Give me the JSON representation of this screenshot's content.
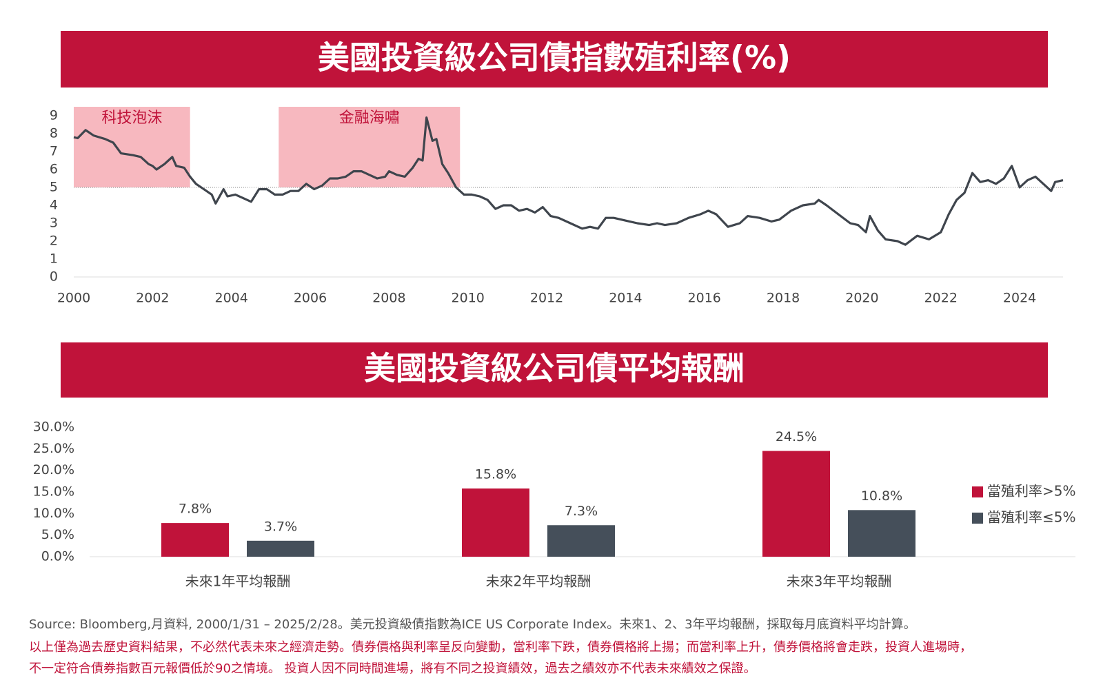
{
  "chart_data": [
    {
      "type": "line",
      "title": "美國投資級公司債指數殖利率(%)",
      "x": [
        2000.0,
        2000.1,
        2000.3,
        2000.5,
        2000.8,
        2001.0,
        2001.2,
        2001.5,
        2001.7,
        2001.9,
        2002.0,
        2002.1,
        2002.3,
        2002.5,
        2002.6,
        2002.8,
        2002.95,
        2003.1,
        2003.3,
        2003.5,
        2003.6,
        2003.8,
        2003.9,
        2004.1,
        2004.3,
        2004.5,
        2004.7,
        2004.9,
        2005.1,
        2005.3,
        2005.5,
        2005.7,
        2005.9,
        2006.1,
        2006.3,
        2006.5,
        2006.7,
        2006.9,
        2007.1,
        2007.3,
        2007.5,
        2007.7,
        2007.9,
        2008.0,
        2008.2,
        2008.4,
        2008.6,
        2008.75,
        2008.85,
        2008.95,
        2009.1,
        2009.2,
        2009.35,
        2009.5,
        2009.7,
        2009.9,
        2010.1,
        2010.3,
        2010.5,
        2010.7,
        2010.9,
        2011.1,
        2011.3,
        2011.5,
        2011.7,
        2011.9,
        2012.1,
        2012.3,
        2012.6,
        2012.9,
        2013.1,
        2013.3,
        2013.5,
        2013.7,
        2013.9,
        2014.1,
        2014.3,
        2014.6,
        2014.8,
        2015.0,
        2015.3,
        2015.6,
        2015.9,
        2016.1,
        2016.3,
        2016.6,
        2016.9,
        2017.1,
        2017.4,
        2017.7,
        2017.9,
        2018.2,
        2018.5,
        2018.8,
        2018.9,
        2019.1,
        2019.4,
        2019.7,
        2019.9,
        2020.1,
        2020.2,
        2020.4,
        2020.6,
        2020.9,
        2021.1,
        2021.4,
        2021.7,
        2022.0,
        2022.2,
        2022.4,
        2022.6,
        2022.8,
        2023.0,
        2023.2,
        2023.4,
        2023.6,
        2023.8,
        2024.0,
        2024.2,
        2024.4,
        2024.6,
        2024.8,
        2024.9,
        2025.1
      ],
      "values": [
        7.8,
        7.75,
        8.2,
        7.9,
        7.7,
        7.5,
        6.9,
        6.8,
        6.7,
        6.3,
        6.2,
        6.0,
        6.3,
        6.7,
        6.2,
        6.1,
        5.6,
        5.2,
        4.9,
        4.6,
        4.1,
        4.9,
        4.5,
        4.6,
        4.4,
        4.2,
        4.9,
        4.9,
        4.6,
        4.6,
        4.8,
        4.8,
        5.2,
        4.9,
        5.1,
        5.5,
        5.5,
        5.6,
        5.9,
        5.9,
        5.7,
        5.5,
        5.6,
        5.9,
        5.7,
        5.6,
        6.1,
        6.6,
        6.5,
        8.9,
        7.6,
        7.7,
        6.3,
        5.8,
        5.0,
        4.6,
        4.6,
        4.5,
        4.3,
        3.8,
        4.0,
        4.0,
        3.7,
        3.8,
        3.6,
        3.9,
        3.4,
        3.3,
        3.0,
        2.7,
        2.8,
        2.7,
        3.3,
        3.3,
        3.2,
        3.1,
        3.0,
        2.9,
        3.0,
        2.9,
        3.0,
        3.3,
        3.5,
        3.7,
        3.5,
        2.8,
        3.0,
        3.4,
        3.3,
        3.1,
        3.2,
        3.7,
        4.0,
        4.1,
        4.3,
        4.0,
        3.5,
        3.0,
        2.9,
        2.5,
        3.4,
        2.6,
        2.1,
        2.0,
        1.8,
        2.3,
        2.1,
        2.5,
        3.5,
        4.3,
        4.7,
        5.8,
        5.3,
        5.4,
        5.2,
        5.5,
        6.2,
        5.0,
        5.4,
        5.6,
        5.2,
        4.8,
        5.3,
        5.4
      ],
      "color": "#3f454d",
      "xlim": [
        2000,
        2025.1
      ],
      "xticks": [
        2000,
        2002,
        2004,
        2006,
        2008,
        2010,
        2012,
        2014,
        2016,
        2018,
        2020,
        2022,
        2024
      ],
      "ylim": [
        0,
        9.5
      ],
      "yticks": [
        0,
        1,
        2,
        3,
        4,
        5,
        6,
        7,
        8,
        9
      ],
      "reference_line": 5,
      "annotations": [
        {
          "text": "科技泡沫",
          "x": [
            2000,
            2002.95
          ],
          "y": [
            5,
            9.5
          ],
          "color": "#f7b8bf"
        },
        {
          "text": "金融海嘯",
          "x": [
            2005.2,
            2009.8
          ],
          "y": [
            5,
            9.5
          ],
          "color": "#f7b8bf"
        }
      ]
    },
    {
      "type": "bar",
      "title": "美國投資級公司債平均報酬",
      "categories": [
        "未來1年平均報酬",
        "未來2年平均報酬",
        "未來3年平均報酬"
      ],
      "series": [
        {
          "name": "當殖利率>5%",
          "color": "#c0133a",
          "values": [
            7.8,
            15.8,
            24.5
          ],
          "value_labels": [
            "7.8%",
            "15.8%",
            "24.5%"
          ]
        },
        {
          "name": "當殖利率≤5%",
          "color": "#454f5a",
          "values": [
            3.7,
            7.3,
            10.8
          ],
          "value_labels": [
            "3.7%",
            "7.3%",
            "10.8%"
          ]
        }
      ],
      "ylim": [
        0,
        30
      ],
      "yticks": [
        {
          "value": 0,
          "label": "0.0%"
        },
        {
          "value": 5,
          "label": "5.0%"
        },
        {
          "value": 10,
          "label": "10.0%"
        },
        {
          "value": 15,
          "label": "15.0%"
        },
        {
          "value": 20,
          "label": "20.0%"
        },
        {
          "value": 25,
          "label": "25.0%"
        },
        {
          "value": 30,
          "label": "30.0%"
        }
      ],
      "legend": "right"
    }
  ],
  "footnotes": {
    "source": "Source: Bloomberg,月資料, 2000/1/31 – 2025/2/28。美元投資級債指數為ICE US Corporate Index。未來1、2、3年平均報酬，採取每月底資料平均計算。",
    "disclaimer": [
      "以上僅為過去歷史資料結果，不必然代表未來之經濟走勢。債券價格與利率呈反向變動，當利率下跌，債券價格將上揚；而當利率上升，債券價格將會走跌，投資人進場時，",
      "不一定符合債券指數百元報價低於90之情境。 投資人因不同時間進場，將有不同之投資績效，過去之績效亦不代表未來績效之保證。"
    ]
  }
}
